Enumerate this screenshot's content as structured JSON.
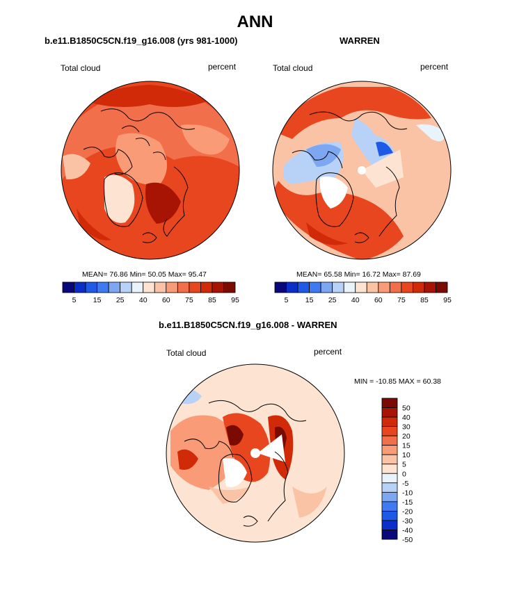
{
  "figure": {
    "season": "ANN"
  },
  "panels": [
    {
      "id": "model",
      "title": "b.e11.B1850C5CN.f19_g16.008 (yrs 981-1000)",
      "left_label": "Total cloud",
      "right_label": "percent",
      "stats": "MEAN=  76.86  Min=  50.05  Max=  95.47"
    },
    {
      "id": "obs",
      "title": "WARREN",
      "left_label": "Total cloud",
      "right_label": "percent",
      "stats": "MEAN=  65.58  Min=  16.72  Max=  87.69"
    },
    {
      "id": "diff",
      "title": "b.e11.B1850C5CN.f19_g16.008 - WARREN",
      "left_label": "Total cloud",
      "right_label": "percent",
      "stats": "MIN = -10.85 MAX =  60.38"
    }
  ],
  "colorbars": {
    "abs": {
      "colors": [
        "#08087a",
        "#0a2ec8",
        "#1f5ae6",
        "#3f7af0",
        "#7ea7f2",
        "#b8d1f7",
        "#e8f3fb",
        "#fde4d2",
        "#fbc3a6",
        "#f89b76",
        "#f26f4b",
        "#e8461f",
        "#d02a09",
        "#a81403",
        "#7a0a02"
      ],
      "tick_labels": [
        "5",
        "15",
        "25",
        "40",
        "60",
        "75",
        "85",
        "95"
      ],
      "tick_positions": [
        1,
        3,
        5,
        7,
        9,
        11,
        13,
        15
      ]
    },
    "diff": {
      "colors": [
        "#7a0a02",
        "#a81403",
        "#d02a09",
        "#e8461f",
        "#f26f4b",
        "#f89b76",
        "#fbc3a6",
        "#fde4d2",
        "#e8f3fb",
        "#b8d1f7",
        "#7ea7f2",
        "#3f7af0",
        "#1f5ae6",
        "#0a2ec8",
        "#08087a"
      ],
      "tick_labels": [
        "50",
        "40",
        "30",
        "20",
        "15",
        "10",
        "5",
        "0",
        "-5",
        "-10",
        "-15",
        "-20",
        "-30",
        "-40",
        "-50"
      ]
    }
  },
  "chart_data": [
    {
      "type": "heatmap",
      "title": "b.e11.B1850C5CN.f19_g16.008 (yrs 981-1000)",
      "variable": "Total cloud",
      "units": "percent",
      "projection": "north polar stereographic",
      "mean": 76.86,
      "min": 50.05,
      "max": 95.47,
      "contour_levels": [
        5,
        10,
        15,
        20,
        25,
        30,
        40,
        50,
        60,
        70,
        75,
        80,
        85,
        90,
        95
      ]
    },
    {
      "type": "heatmap",
      "title": "WARREN",
      "variable": "Total cloud",
      "units": "percent",
      "projection": "north polar stereographic",
      "mean": 65.58,
      "min": 16.72,
      "max": 87.69,
      "contour_levels": [
        5,
        10,
        15,
        20,
        25,
        30,
        40,
        50,
        60,
        70,
        75,
        80,
        85,
        90,
        95
      ]
    },
    {
      "type": "heatmap",
      "title": "b.e11.B1850C5CN.f19_g16.008 - WARREN",
      "variable": "Total cloud",
      "units": "percent",
      "projection": "north polar stereographic",
      "min": -10.85,
      "max": 60.38,
      "contour_levels": [
        -50,
        -40,
        -30,
        -20,
        -15,
        -10,
        -5,
        0,
        5,
        10,
        15,
        20,
        30,
        40,
        50
      ]
    }
  ]
}
